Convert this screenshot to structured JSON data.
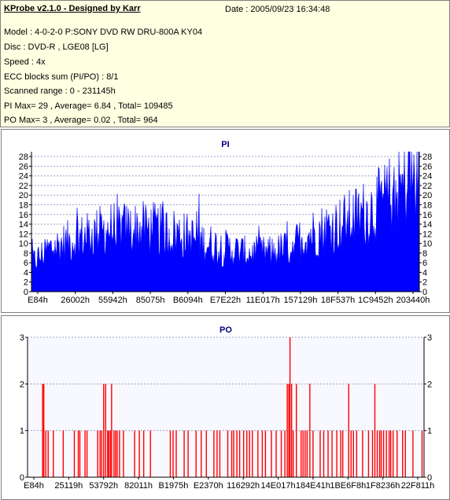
{
  "header": {
    "title": "KProbe v2.1.0 - Designed by Karr",
    "date": "Date : 2005/09/23 16:34:48",
    "lines": [
      "Model : 4-0-2-0 P:SONY    DVD RW DRU-800A  KY04",
      "Disc : DVD-R , LGE08 [LG]",
      "Speed : 4x",
      "ECC blocks sum (PI/PO) : 8/1",
      "Scanned range : 0 - 231145h",
      "PI Max= 29 , Average= 6.84 , Total= 109485",
      "PO Max= 3 , Average= 0.02 , Total= 964"
    ]
  },
  "chart_data": [
    {
      "type": "area",
      "title": "PI",
      "ylim": [
        0,
        29
      ],
      "yticks": [
        0,
        2,
        4,
        6,
        8,
        10,
        12,
        14,
        16,
        18,
        20,
        22,
        24,
        26,
        28
      ],
      "xticks": [
        "E84h",
        "26002h",
        "55942h",
        "85075h",
        "B6094h",
        "E7E22h",
        "11E017h",
        "157129h",
        "18F537h",
        "1C9452h",
        "203440h"
      ],
      "grid": true,
      "color": "#0000ff",
      "x_range": [
        "0h",
        "231145h"
      ],
      "profile": [
        [
          0,
          6
        ],
        [
          0.05,
          9
        ],
        [
          0.12,
          11
        ],
        [
          0.2,
          13
        ],
        [
          0.3,
          13
        ],
        [
          0.38,
          12
        ],
        [
          0.45,
          10
        ],
        [
          0.55,
          8
        ],
        [
          0.62,
          8
        ],
        [
          0.66,
          9
        ],
        [
          0.72,
          12
        ],
        [
          0.8,
          14
        ],
        [
          0.88,
          17
        ],
        [
          0.95,
          21
        ],
        [
          1.0,
          24
        ]
      ],
      "max": 29,
      "average": 6.84
    },
    {
      "type": "bar",
      "title": "PO",
      "ylim": [
        0,
        3
      ],
      "yticks": [
        0,
        1,
        2,
        3
      ],
      "xticks": [
        "E84h",
        "25119h",
        "53792h",
        "82011h",
        "B1975h",
        "E2370h",
        "116292h",
        "14E017h",
        "184E41h",
        "1BE6F8h",
        "1F8236h",
        "22F811h"
      ],
      "grid": true,
      "color": "#ff0000",
      "x_range": [
        "0h",
        "231145h"
      ],
      "spikes": [
        [
          0.038,
          2
        ],
        [
          0.041,
          2
        ],
        [
          0.046,
          1
        ],
        [
          0.052,
          1
        ],
        [
          0.065,
          1
        ],
        [
          0.09,
          1
        ],
        [
          0.118,
          1
        ],
        [
          0.128,
          1
        ],
        [
          0.132,
          1
        ],
        [
          0.145,
          1
        ],
        [
          0.15,
          1
        ],
        [
          0.177,
          1
        ],
        [
          0.183,
          1
        ],
        [
          0.187,
          1
        ],
        [
          0.192,
          2
        ],
        [
          0.197,
          2
        ],
        [
          0.202,
          1
        ],
        [
          0.205,
          1
        ],
        [
          0.209,
          1
        ],
        [
          0.212,
          2
        ],
        [
          0.218,
          1
        ],
        [
          0.222,
          1
        ],
        [
          0.226,
          1
        ],
        [
          0.232,
          1
        ],
        [
          0.242,
          1
        ],
        [
          0.27,
          1
        ],
        [
          0.282,
          1
        ],
        [
          0.293,
          1
        ],
        [
          0.31,
          1
        ],
        [
          0.36,
          1
        ],
        [
          0.367,
          1
        ],
        [
          0.375,
          1
        ],
        [
          0.395,
          1
        ],
        [
          0.405,
          1
        ],
        [
          0.425,
          1
        ],
        [
          0.438,
          1
        ],
        [
          0.451,
          1
        ],
        [
          0.47,
          1
        ],
        [
          0.478,
          1
        ],
        [
          0.485,
          1
        ],
        [
          0.505,
          1
        ],
        [
          0.515,
          1
        ],
        [
          0.52,
          1
        ],
        [
          0.528,
          1
        ],
        [
          0.535,
          1
        ],
        [
          0.545,
          1
        ],
        [
          0.553,
          1
        ],
        [
          0.56,
          1
        ],
        [
          0.567,
          1
        ],
        [
          0.581,
          1
        ],
        [
          0.592,
          1
        ],
        [
          0.6,
          1
        ],
        [
          0.615,
          1
        ],
        [
          0.627,
          1
        ],
        [
          0.64,
          1
        ],
        [
          0.649,
          1
        ],
        [
          0.655,
          2
        ],
        [
          0.659,
          2
        ],
        [
          0.662,
          3
        ],
        [
          0.666,
          2
        ],
        [
          0.67,
          1
        ],
        [
          0.678,
          2
        ],
        [
          0.69,
          1
        ],
        [
          0.695,
          1
        ],
        [
          0.7,
          1
        ],
        [
          0.705,
          1
        ],
        [
          0.712,
          2
        ],
        [
          0.72,
          1
        ],
        [
          0.738,
          1
        ],
        [
          0.747,
          1
        ],
        [
          0.758,
          1
        ],
        [
          0.768,
          1
        ],
        [
          0.78,
          1
        ],
        [
          0.79,
          1
        ],
        [
          0.795,
          1
        ],
        [
          0.81,
          2
        ],
        [
          0.816,
          1
        ],
        [
          0.822,
          1
        ],
        [
          0.83,
          1
        ],
        [
          0.845,
          1
        ],
        [
          0.86,
          1
        ],
        [
          0.87,
          1
        ],
        [
          0.876,
          2
        ],
        [
          0.882,
          1
        ],
        [
          0.888,
          1
        ],
        [
          0.892,
          1
        ],
        [
          0.898,
          1
        ],
        [
          0.905,
          1
        ],
        [
          0.912,
          1
        ],
        [
          0.916,
          1
        ],
        [
          0.922,
          1
        ],
        [
          0.932,
          1
        ],
        [
          0.946,
          1
        ],
        [
          0.953,
          1
        ],
        [
          0.972,
          1
        ],
        [
          0.995,
          1
        ]
      ]
    }
  ]
}
